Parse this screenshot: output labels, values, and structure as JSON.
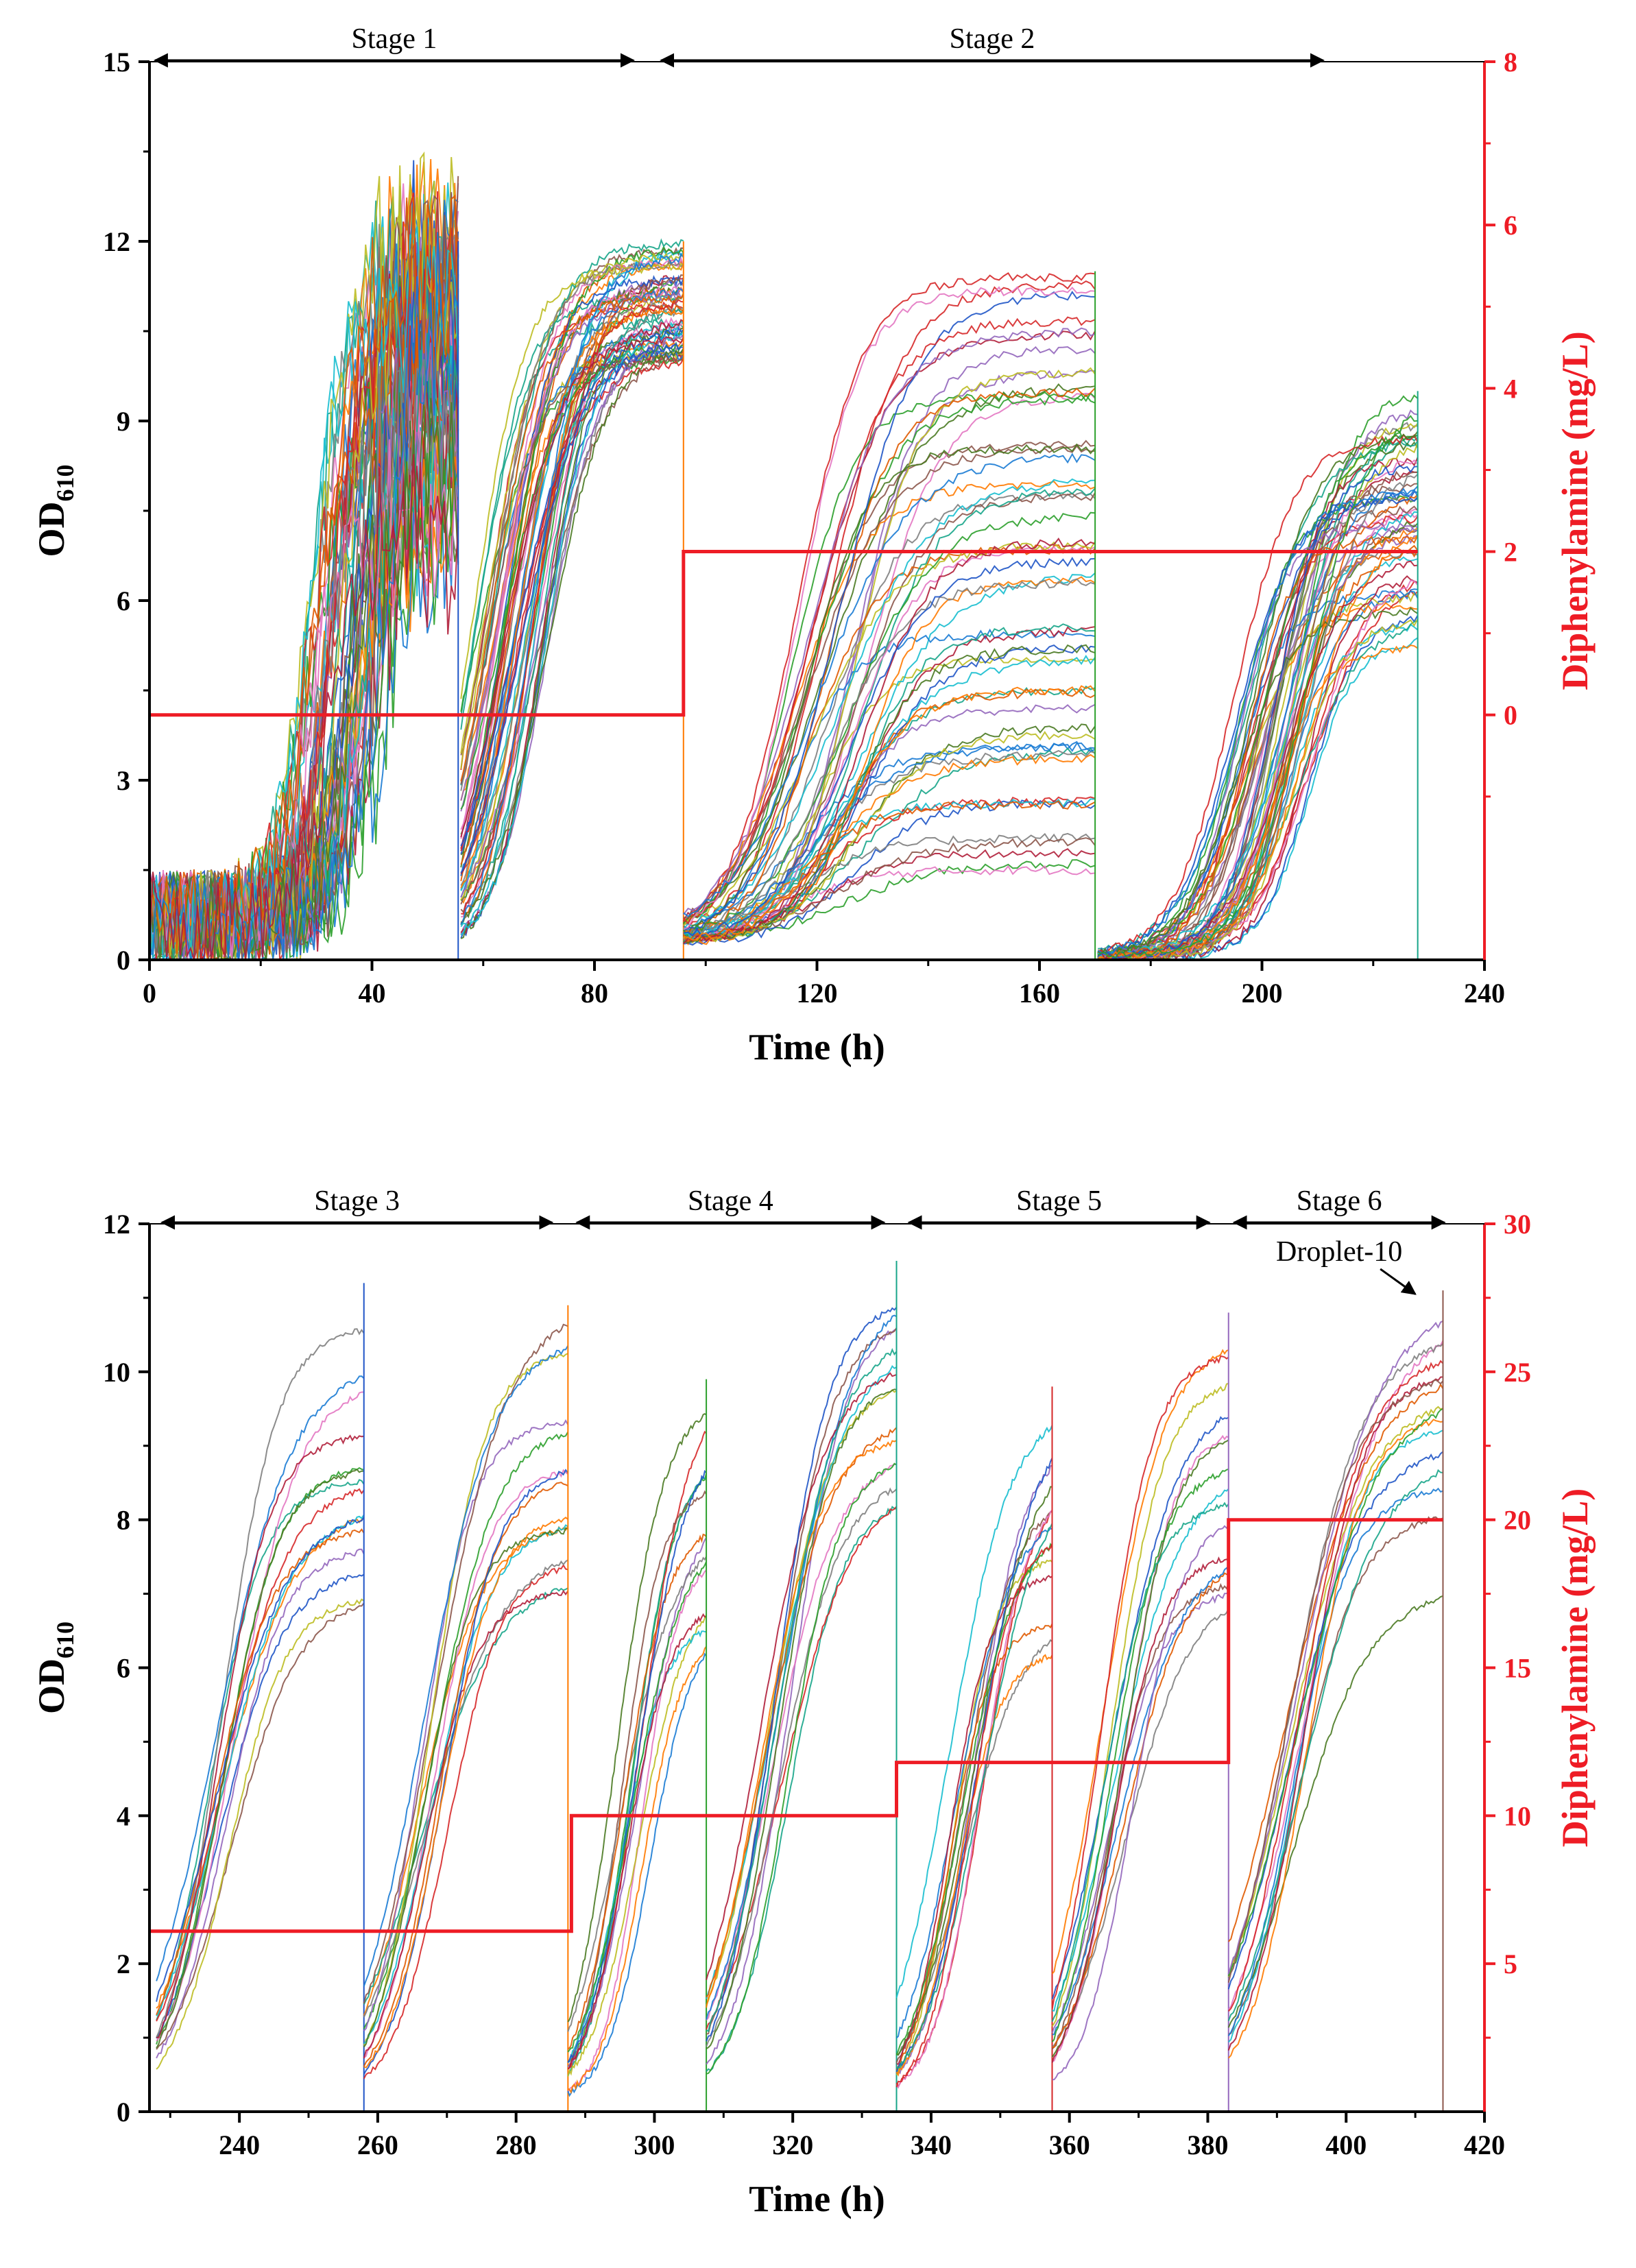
{
  "chart_data": [
    {
      "type": "line",
      "panel": "top",
      "xlabel": "Time (h)",
      "ylabel_main": "OD",
      "ylabel_sub": "610",
      "y2label": "Diphenylamine (mg/L)",
      "xlim": [
        0,
        240
      ],
      "ylim": [
        0,
        15
      ],
      "y2lim": [
        -3,
        8
      ],
      "x_ticks": [
        0,
        40,
        80,
        120,
        160,
        200,
        240
      ],
      "y_ticks": [
        0,
        3,
        6,
        9,
        12,
        15
      ],
      "y2_ticks": [
        0,
        2,
        4,
        6,
        8
      ],
      "stages": [
        {
          "label": "Stage 1",
          "start": 0,
          "end": 88
        },
        {
          "label": "Stage 2",
          "start": 91,
          "end": 212
        }
      ],
      "od_cycles": [
        {
          "start": 0,
          "end": 55.5,
          "lag": 10,
          "k": 0.33,
          "mid": 35,
          "top_min": 7,
          "top_max": 12,
          "start_od": 0.7,
          "noise_start": 40,
          "noise_amp": 1.6
        },
        {
          "start": 56,
          "end": 96,
          "lag": 0,
          "k": 0.2,
          "mid": 65,
          "top_min": 10,
          "top_max": 12,
          "start_od": 0.1,
          "noise_start": 999,
          "noise_amp": 0.15
        },
        {
          "start": 96,
          "end": 170,
          "lag": 0,
          "k": 0.15,
          "mid": 122,
          "top_min": 1.5,
          "top_max": 11.5,
          "start_od": 0.3,
          "noise_start": 999,
          "noise_amp": 0.15
        },
        {
          "start": 170.5,
          "end": 228,
          "lag": 0,
          "k": 0.2,
          "mid": 202,
          "top_min": 5,
          "top_max": 9.5,
          "start_od": 0.05,
          "noise_start": 999,
          "noise_amp": 0.15
        }
      ],
      "diphenylamine": {
        "x": [
          0,
          96,
          96,
          228
        ],
        "y": [
          0,
          0,
          2,
          2
        ]
      }
    },
    {
      "type": "line",
      "panel": "bottom",
      "xlabel": "Time (h)",
      "ylabel_main": "OD",
      "ylabel_sub": "610",
      "y2label": "Diphenylamine (mg/L)",
      "xlim": [
        227,
        420
      ],
      "ylim": [
        0,
        12
      ],
      "y2lim": [
        0,
        30
      ],
      "x_ticks": [
        240,
        260,
        280,
        300,
        320,
        340,
        360,
        380,
        400,
        420
      ],
      "y_ticks": [
        0,
        2,
        4,
        6,
        8,
        10,
        12
      ],
      "y2_ticks": [
        5,
        10,
        15,
        20,
        25,
        30
      ],
      "stages": [
        {
          "label": "Stage 3",
          "start": 228,
          "end": 286
        },
        {
          "label": "Stage 4",
          "start": 288,
          "end": 334
        },
        {
          "label": "Stage 5",
          "start": 336,
          "end": 381
        },
        {
          "label": "Stage 6",
          "start": 383,
          "end": 415
        }
      ],
      "od_cycles": [
        {
          "start": 228,
          "end": 258,
          "lag": 0,
          "k": 0.22,
          "mid": 237,
          "top_min": 6.8,
          "top_max": 11.2,
          "start_od": 0.1
        },
        {
          "start": 258,
          "end": 287.5,
          "lag": 0,
          "k": 0.22,
          "mid": 268,
          "top_min": 7.0,
          "top_max": 10.9,
          "start_od": 0.1
        },
        {
          "start": 287.5,
          "end": 307.5,
          "lag": 0,
          "k": 0.3,
          "mid": 297,
          "top_min": 6.2,
          "top_max": 9.9,
          "start_od": 0.1
        },
        {
          "start": 307.5,
          "end": 335,
          "lag": 0,
          "k": 0.22,
          "mid": 317,
          "top_min": 7.7,
          "top_max": 11.5,
          "start_od": 0.1
        },
        {
          "start": 335,
          "end": 357.5,
          "lag": 0,
          "k": 0.28,
          "mid": 345,
          "top_min": 6.2,
          "top_max": 9.8,
          "start_od": 0.1
        },
        {
          "start": 357.5,
          "end": 383,
          "lag": 0,
          "k": 0.24,
          "mid": 367,
          "top_min": 7.0,
          "top_max": 10.8,
          "start_od": 0.1
        },
        {
          "start": 383,
          "end": 414,
          "lag": 0,
          "k": 0.2,
          "mid": 393,
          "top_min": 7.0,
          "top_max": 11.1,
          "start_od": 0.1
        }
      ],
      "diphenylamine": {
        "x": [
          227,
          288,
          288,
          335,
          335,
          383,
          383,
          414
        ],
        "y": [
          6.1,
          6.1,
          10,
          10,
          11.8,
          11.8,
          20,
          20
        ]
      },
      "annotations": [
        {
          "text": "Droplet-10",
          "x": 399,
          "y": 11.5,
          "arrow_to_x": 410,
          "arrow_to_y": 11.05
        }
      ]
    }
  ],
  "style": {
    "axis_color": "#000000",
    "secondary_axis_color": "#ee1c25",
    "step_line_color": "#ee1c25",
    "series_palette": [
      "#1f55c7",
      "#ff7a00",
      "#2ca02c",
      "#17a589",
      "#d62728",
      "#9467bd",
      "#8c564b",
      "#e377c2",
      "#7f7f7f",
      "#bcbd22",
      "#17becf",
      "#4a7a22",
      "#e05a00",
      "#1a7bd4",
      "#b01e3a"
    ]
  }
}
